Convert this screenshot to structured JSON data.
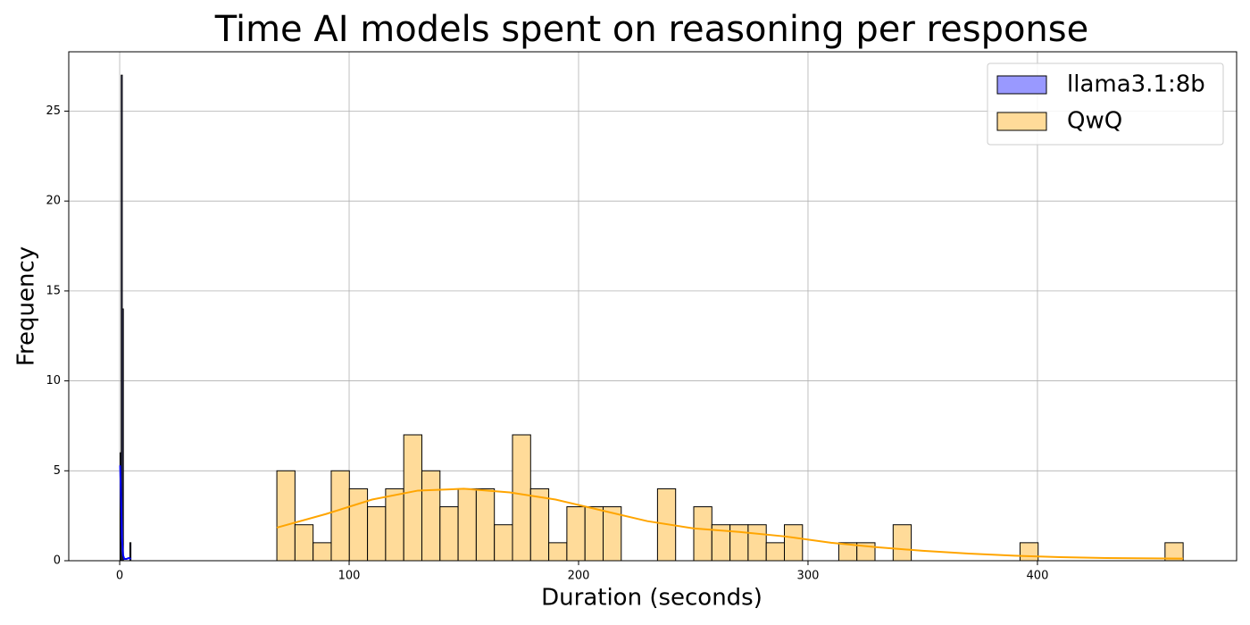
{
  "chart_data": {
    "type": "histogram",
    "title": "Time AI models spent on reasoning per response",
    "x_label": "Duration (seconds)",
    "y_label": "Frequency",
    "xlim": [
      -22.2,
      486.8
    ],
    "ylim": [
      0,
      28.3
    ],
    "xticks": [
      0,
      100,
      200,
      300,
      400
    ],
    "yticks": [
      0,
      5,
      10,
      15,
      20,
      25
    ],
    "grid": true,
    "legend": "upper right",
    "series": [
      {
        "name": "llama3.1:8b",
        "color": "#9999ff",
        "line_color": "#0000ff",
        "bins": [
          0.2,
          0.67,
          1.14,
          1.61,
          2.08,
          2.55,
          3.02,
          3.49,
          3.96,
          4.43,
          4.9
        ],
        "values": [
          6,
          27,
          14,
          0,
          0,
          0,
          0,
          0,
          0,
          1
        ],
        "kde": {
          "x": [
            0.2,
            0.6,
            1,
            1.5,
            2,
            3,
            4,
            4.9
          ],
          "values": [
            5.3,
            3.5,
            1.2,
            0.3,
            0.1,
            0.1,
            0.15,
            0.1
          ]
        }
      },
      {
        "name": "QwQ",
        "color": "#ffdb99",
        "line_color": "#ffa500",
        "bins": [
          68.5,
          76.4,
          84.3,
          92.2,
          100.1,
          108,
          115.9,
          123.8,
          131.7,
          139.6,
          147.5,
          155.4,
          163.3,
          171.2,
          179.1,
          187,
          194.9,
          202.8,
          210.7,
          218.6,
          226.5,
          234.4,
          242.3,
          250.2,
          258.1,
          266,
          273.9,
          281.8,
          289.7,
          297.6,
          305.5,
          313.4,
          321.3,
          329.2,
          337.1,
          345,
          352.9,
          360.8,
          368.7,
          376.6,
          384.5,
          392.4,
          400.3,
          408.2,
          416.1,
          424,
          431.9,
          439.8,
          447.7,
          455.6,
          463.5
        ],
        "values": [
          5,
          2,
          1,
          5,
          4,
          3,
          4,
          7,
          5,
          3,
          4,
          4,
          2,
          7,
          4,
          1,
          3,
          3,
          3,
          0,
          0,
          4,
          0,
          3,
          2,
          2,
          2,
          1,
          2,
          0,
          0,
          1,
          1,
          0,
          2,
          0,
          0,
          0,
          0,
          0,
          0,
          1,
          0,
          0,
          0,
          0,
          0,
          0,
          0,
          1
        ],
        "kde": {
          "x": [
            68.5,
            90,
            110,
            130,
            150,
            170,
            190,
            210,
            230,
            250,
            270,
            290,
            310,
            330,
            350,
            370,
            390,
            410,
            430,
            463.5
          ],
          "values": [
            1.84,
            2.6,
            3.4,
            3.9,
            4.0,
            3.8,
            3.4,
            2.8,
            2.2,
            1.8,
            1.6,
            1.35,
            1.0,
            0.75,
            0.55,
            0.4,
            0.28,
            0.2,
            0.15,
            0.12
          ]
        }
      }
    ]
  }
}
